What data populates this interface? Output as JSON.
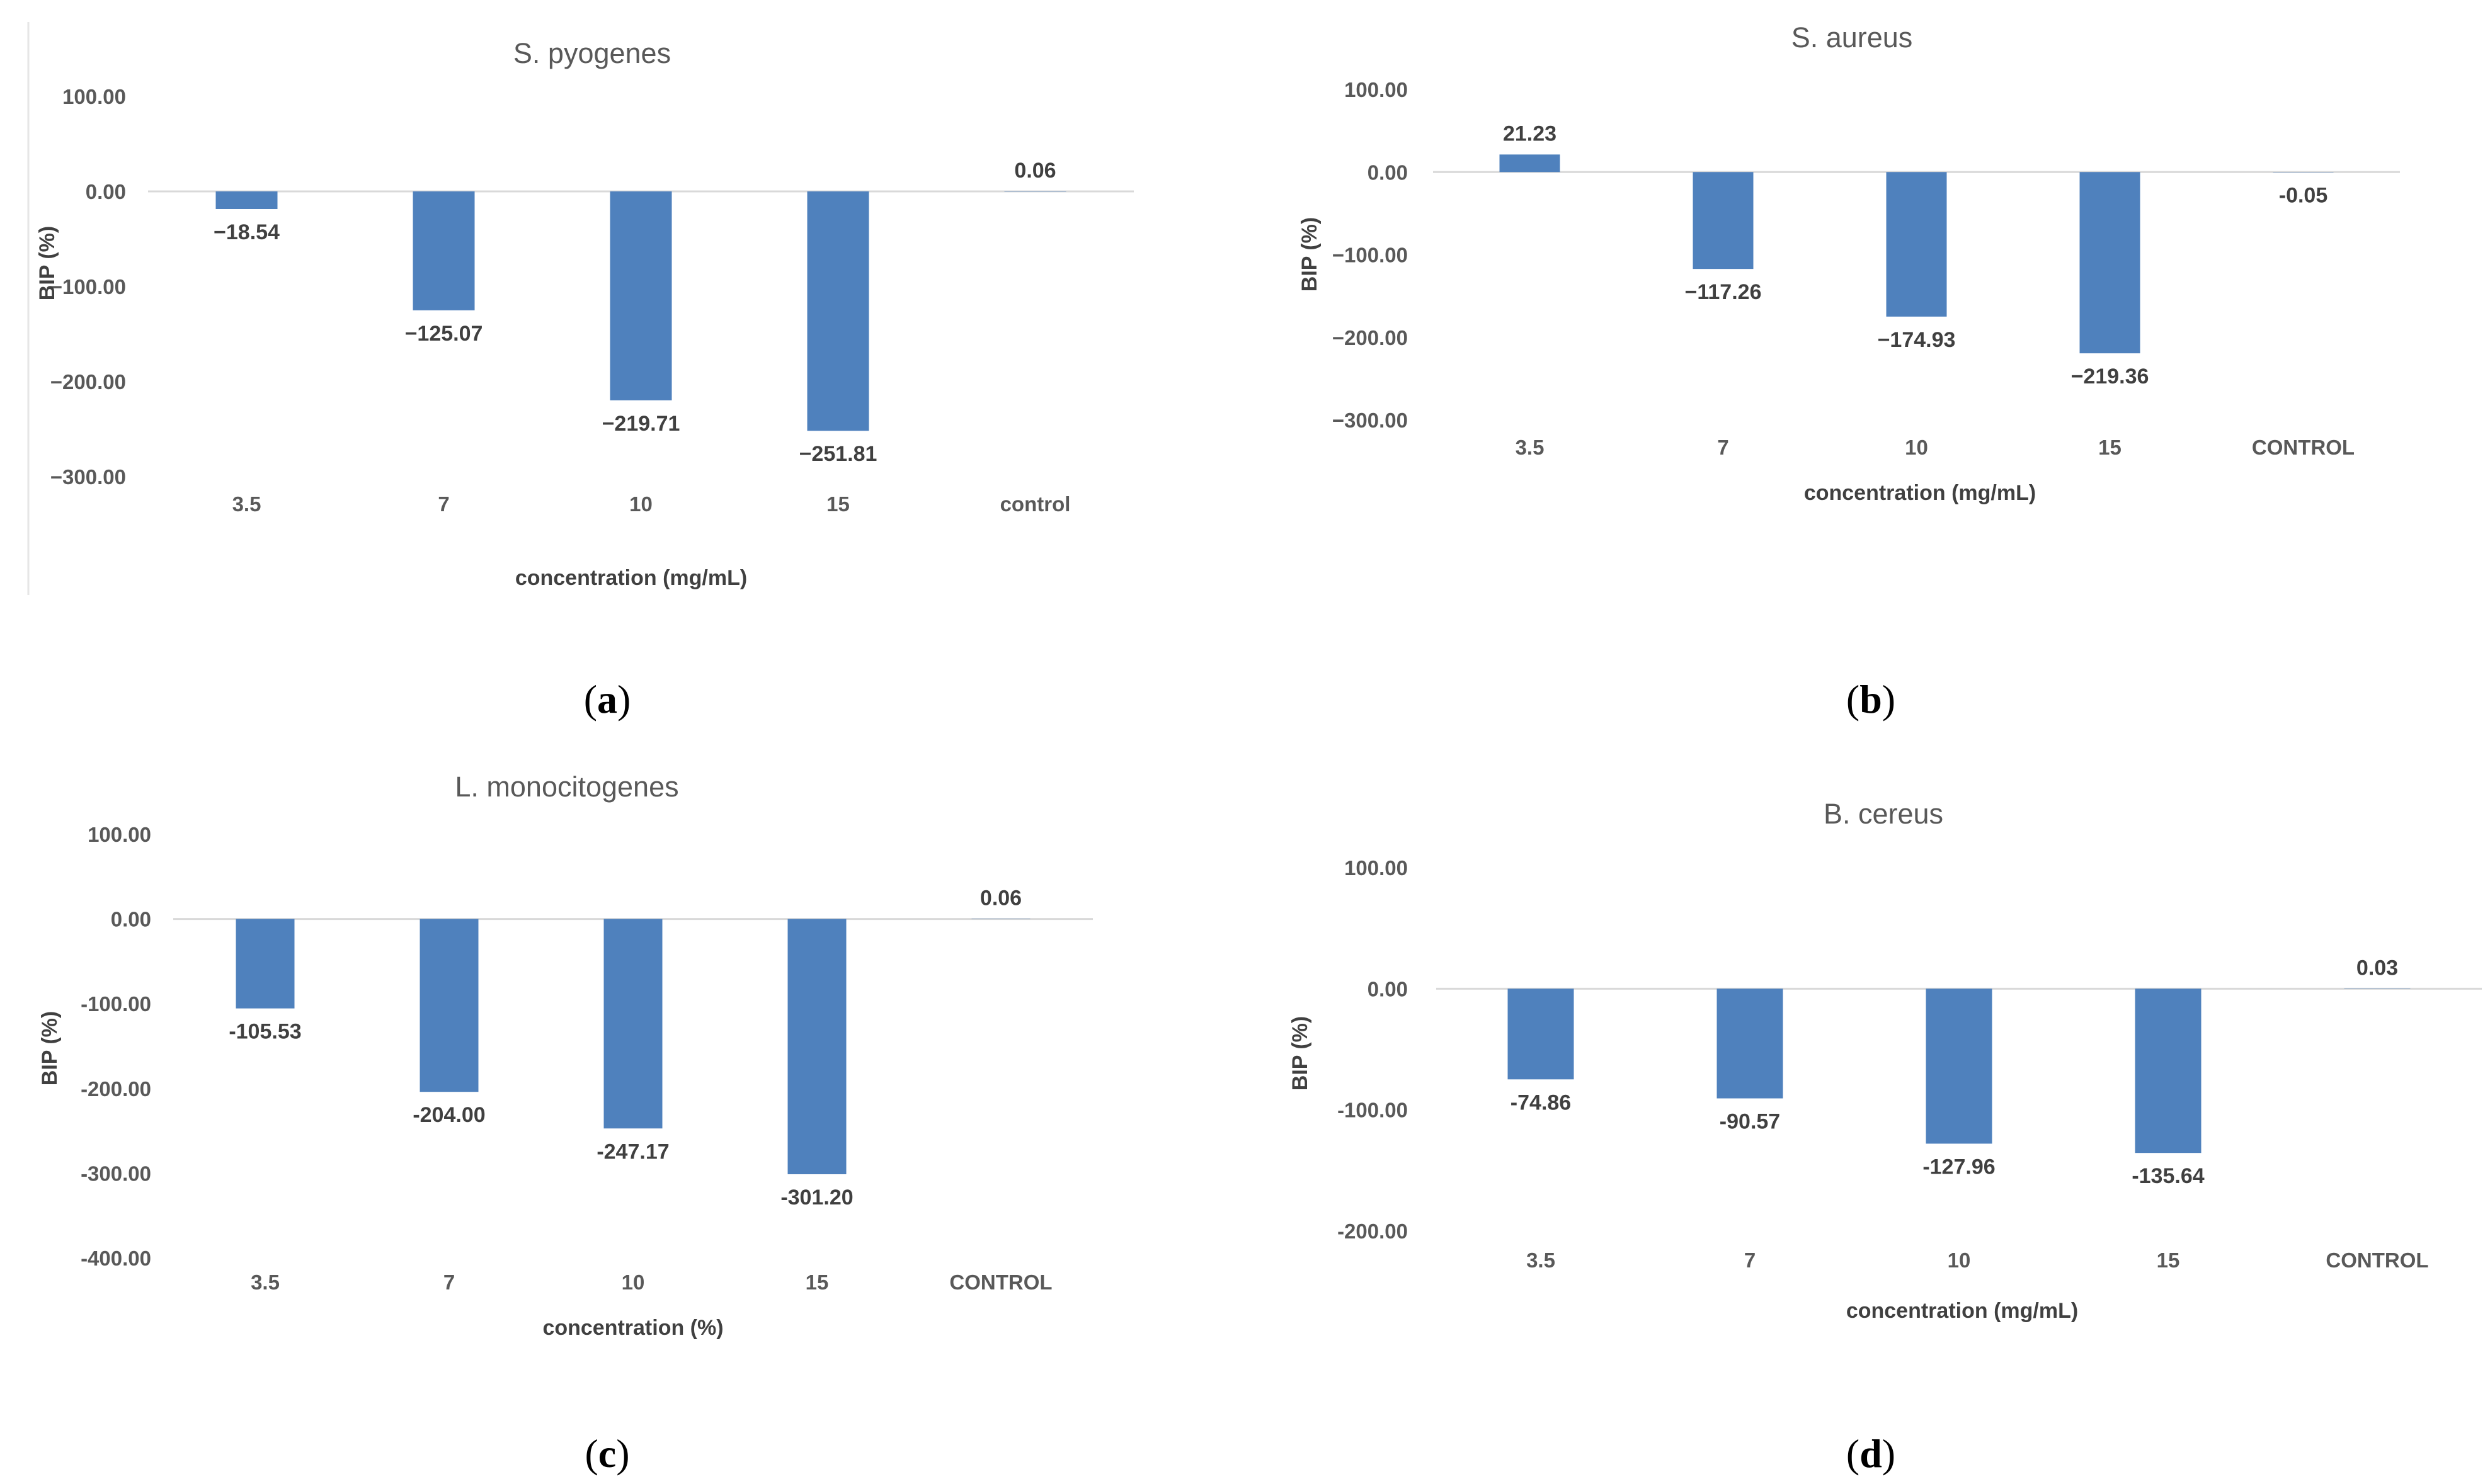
{
  "colors": {
    "bar": "#4f81bd",
    "zero_line": "#d9d9d9",
    "text": "#595959",
    "frame": "#d9d9d9"
  },
  "panels": [
    {
      "caption": "(a)",
      "letter": "a"
    },
    {
      "caption": "(b)",
      "letter": "b"
    },
    {
      "caption": "(c)",
      "letter": "c"
    },
    {
      "caption": "(d)",
      "letter": "d"
    }
  ],
  "chart_data": [
    {
      "type": "bar",
      "title": "S. pyogenes",
      "xlabel": "concentration (mg/mL)",
      "ylabel": "BIP (%)",
      "categories": [
        "3.5",
        "7",
        "10",
        "15",
        "control"
      ],
      "values": [
        -18.54,
        -125.07,
        -219.71,
        -251.81,
        0.06
      ],
      "data_labels": [
        "−18.54",
        "−125.07",
        "−219.71",
        "−251.81",
        "0.06"
      ],
      "yticks": [
        100,
        0,
        -100,
        -200,
        -300
      ],
      "ytick_labels": [
        "100.00",
        "0.00",
        "−100.00",
        "−200.00",
        "−300.00"
      ],
      "ylim": [
        -300,
        100
      ],
      "legend": "none"
    },
    {
      "type": "bar",
      "title": "S. aureus",
      "xlabel": "concentration (mg/mL)",
      "ylabel": "BIP (%)",
      "categories": [
        "3.5",
        "7",
        "10",
        "15",
        "CONTROL"
      ],
      "values": [
        21.23,
        -117.26,
        -174.93,
        -219.36,
        -0.05
      ],
      "data_labels": [
        "21.23",
        "−117.26",
        "−174.93",
        "−219.36",
        "-0.05"
      ],
      "yticks": [
        100,
        0,
        -100,
        -200,
        -300
      ],
      "ytick_labels": [
        "100.00",
        "0.00",
        "−100.00",
        "−200.00",
        "−300.00"
      ],
      "ylim": [
        -300,
        100
      ],
      "legend": "none"
    },
    {
      "type": "bar",
      "title": "L. monocitogenes",
      "xlabel": "concentration (%)",
      "ylabel": "BIP (%)",
      "categories": [
        "3.5",
        "7",
        "10",
        "15",
        "CONTROL"
      ],
      "values": [
        -105.53,
        -204.0,
        -247.17,
        -301.2,
        0.06
      ],
      "data_labels": [
        "-105.53",
        "-204.00",
        "-247.17",
        "-301.20",
        "0.06"
      ],
      "yticks": [
        100,
        0,
        -100,
        -200,
        -300,
        -400
      ],
      "ytick_labels": [
        "100.00",
        "0.00",
        "-100.00",
        "-200.00",
        "-300.00",
        "-400.00"
      ],
      "ylim": [
        -400,
        100
      ],
      "legend": "none"
    },
    {
      "type": "bar",
      "title": "B. cereus",
      "xlabel": "concentration (mg/mL)",
      "ylabel": "BIP (%)",
      "categories": [
        "3.5",
        "7",
        "10",
        "15",
        "CONTROL"
      ],
      "values": [
        -74.86,
        -90.57,
        -127.96,
        -135.64,
        0.03
      ],
      "data_labels": [
        "-74.86",
        "-90.57",
        "-127.96",
        "-135.64",
        "0.03"
      ],
      "yticks": [
        100,
        0,
        -100,
        -200
      ],
      "ytick_labels": [
        "100.00",
        "0.00",
        "-100.00",
        "-200.00"
      ],
      "ylim": [
        -200,
        100
      ],
      "legend": "none"
    }
  ]
}
